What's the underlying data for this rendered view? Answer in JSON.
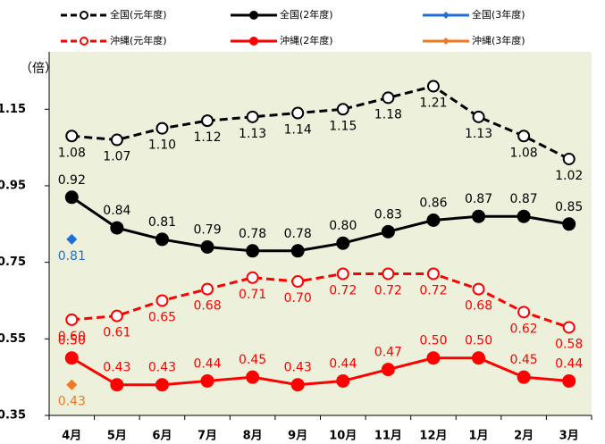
{
  "chart_data": {
    "type": "line",
    "y_label": "（倍）",
    "categories": [
      "4月",
      "5月",
      "6月",
      "7月",
      "8月",
      "9月",
      "10月",
      "11月",
      "12月",
      "1月",
      "2月",
      "3月"
    ],
    "ylim": [
      0.35,
      1.3
    ],
    "yticks": [
      0.35,
      0.55,
      0.75,
      0.95,
      1.15
    ],
    "grid": false,
    "series": [
      {
        "name": "全国(元年度)",
        "color": "#000000",
        "style": "dashed",
        "marker": "open-circle",
        "label_side": "below",
        "values": [
          1.08,
          1.07,
          1.1,
          1.12,
          1.13,
          1.14,
          1.15,
          1.18,
          1.21,
          1.13,
          1.08,
          1.02
        ],
        "value_labels": [
          "1.08",
          "1.07",
          "1.10",
          "1.12",
          "1.13",
          "1.14",
          "1.15",
          "1.18",
          "1.21",
          "1.13",
          "1.08",
          "1.02"
        ]
      },
      {
        "name": "全国(2年度)",
        "color": "#000000",
        "style": "solid",
        "marker": "circle",
        "label_side": "above",
        "values": [
          0.92,
          0.84,
          0.81,
          0.79,
          0.78,
          0.78,
          0.8,
          0.83,
          0.86,
          0.87,
          0.87,
          0.85
        ],
        "value_labels": [
          "0.92",
          "0.84",
          "0.81",
          "0.79",
          "0.78",
          "0.78",
          "0.80",
          "0.83",
          "0.86",
          "0.87",
          "0.87",
          "0.85"
        ]
      },
      {
        "name": "全国(3年度)",
        "color": "#1f6fd6",
        "style": "solid",
        "marker": "diamond",
        "label_side": "below",
        "values": [
          0.81,
          null,
          null,
          null,
          null,
          null,
          null,
          null,
          null,
          null,
          null,
          null
        ],
        "value_labels": [
          "0.81",
          null,
          null,
          null,
          null,
          null,
          null,
          null,
          null,
          null,
          null,
          null
        ]
      },
      {
        "name": "沖縄(元年度)",
        "color": "#ff0000",
        "style": "dashed",
        "marker": "open-circle",
        "label_side": "below",
        "values": [
          0.6,
          0.61,
          0.65,
          0.68,
          0.71,
          0.7,
          0.72,
          0.72,
          0.72,
          0.68,
          0.62,
          0.58
        ],
        "value_labels": [
          "0.60",
          "0.61",
          "0.65",
          "0.68",
          "0.71",
          "0.70",
          "0.72",
          "0.72",
          "0.72",
          "0.68",
          "0.62",
          "0.58"
        ]
      },
      {
        "name": "沖縄(2年度)",
        "color": "#ff0000",
        "style": "solid",
        "marker": "circle",
        "label_side": "above",
        "values": [
          0.5,
          0.43,
          0.43,
          0.44,
          0.45,
          0.43,
          0.44,
          0.47,
          0.5,
          0.5,
          0.45,
          0.44
        ],
        "value_labels": [
          "0.50",
          "0.43",
          "0.43",
          "0.44",
          "0.45",
          "0.43",
          "0.44",
          "0.47",
          "0.50",
          "0.50",
          "0.45",
          "0.44"
        ]
      },
      {
        "name": "沖縄(3年度)",
        "color": "#f07820",
        "style": "solid",
        "marker": "diamond",
        "label_side": "below",
        "values": [
          0.43,
          null,
          null,
          null,
          null,
          null,
          null,
          null,
          null,
          null,
          null,
          null
        ],
        "value_labels": [
          "0.43",
          null,
          null,
          null,
          null,
          null,
          null,
          null,
          null,
          null,
          null,
          null
        ]
      }
    ]
  }
}
